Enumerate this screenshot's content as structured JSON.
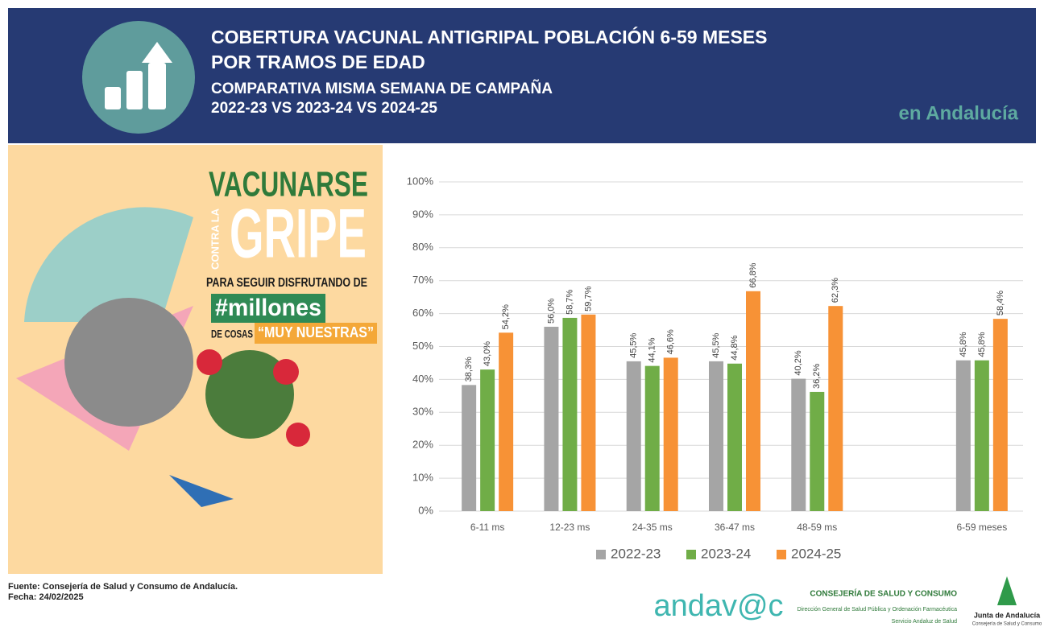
{
  "header": {
    "title_lines": [
      "COBERTURA VACUNAL ANTIGRIPAL POBLACIÓN 6-59 MESES",
      "POR TRAMOS DE EDAD"
    ],
    "subtitle_lines": [
      "COMPARATIVA MISMA SEMANA DE CAMPAÑA",
      "2022-23 VS 2023-24 VS 2024-25"
    ],
    "region": "en Andalucía"
  },
  "poster": {
    "line1": "VACUNARSE",
    "vertical": "CONTRA LA",
    "big": "GRIPE",
    "line2": "PARA SEGUIR DISFRUTANDO DE",
    "hashtag": "#millones",
    "line3": "DE COSAS",
    "quote": "“MUY NUESTRAS”"
  },
  "chart_data": {
    "type": "bar",
    "categories": [
      "6-11 ms",
      "12-23 ms",
      "24-35 ms",
      "36-47 ms",
      "48-59 ms",
      null,
      "6-59 meses"
    ],
    "series": [
      {
        "name": "2022-23",
        "color": "#a5a5a5",
        "values": [
          38.3,
          56.0,
          45.5,
          45.5,
          40.2,
          null,
          45.8
        ],
        "value_labels": [
          "38,3%",
          "56,0%",
          "45,5%",
          "45,5%",
          "40,2%",
          null,
          "45,8%"
        ]
      },
      {
        "name": "2023-24",
        "color": "#70ad47",
        "values": [
          43.0,
          58.7,
          44.1,
          44.8,
          36.2,
          null,
          45.8
        ],
        "value_labels": [
          "43,0%",
          "58,7%",
          "44,1%",
          "44,8%",
          "36,2%",
          null,
          "45,8%"
        ]
      },
      {
        "name": "2024-25",
        "color": "#f79236",
        "values": [
          54.2,
          59.7,
          46.6,
          66.8,
          62.3,
          null,
          58.4
        ],
        "value_labels": [
          "54,2%",
          "59,7%",
          "46,6%",
          "66,8%",
          "62,3%",
          null,
          "58,4%"
        ]
      }
    ],
    "ylim": [
      0,
      100
    ],
    "yticks": [
      {
        "value": 0,
        "label": "0%"
      },
      {
        "value": 10,
        "label": "10%"
      },
      {
        "value": 20,
        "label": "20%"
      },
      {
        "value": 30,
        "label": "30%"
      },
      {
        "value": 40,
        "label": "40%"
      },
      {
        "value": 50,
        "label": "50%"
      },
      {
        "value": 60,
        "label": "60%"
      },
      {
        "value": 70,
        "label": "70%"
      },
      {
        "value": 80,
        "label": "80%"
      },
      {
        "value": 90,
        "label": "90%"
      },
      {
        "value": 100,
        "label": "100%"
      }
    ],
    "grid": true,
    "legend": "bottom"
  },
  "footer": {
    "source": "Fuente: Consejería de Salud y Consumo de Andalucía.",
    "date": "Fecha: 24/02/2025",
    "logo": "andav@c",
    "dept": "CONSEJERÍA DE SALUD Y CONSUMO",
    "dept_sub1": "Dirección General de Salud Pública y Ordenación Farmacéutica",
    "dept_sub2": "Servicio Andaluz de Salud",
    "junta": "Junta de Andalucía",
    "junta_sub": "Consejería de Salud y Consumo"
  }
}
